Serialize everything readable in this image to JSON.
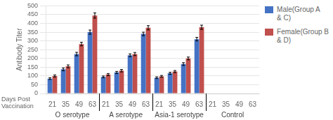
{
  "chart_data": {
    "type": "bar",
    "ylabel": "Antibody Titer",
    "xlabel": "Days Post\nVaccination",
    "categories": [
      "21",
      "35",
      "49",
      "63",
      "21",
      "35",
      "49",
      "63",
      "21",
      "35",
      "49",
      "63",
      "21",
      "35",
      "49",
      "63"
    ],
    "groups": [
      "O serotype",
      "A serotype",
      "Asia-1 serotype",
      "Control"
    ],
    "series": [
      {
        "name": "Male(Group A\n& C)",
        "color": "#4472c4",
        "values": [
          85,
          138,
          225,
          350,
          95,
          120,
          218,
          340,
          90,
          115,
          168,
          310,
          0,
          0,
          0,
          0
        ],
        "errors": [
          5,
          8,
          10,
          12,
          5,
          6,
          8,
          10,
          5,
          6,
          8,
          10,
          0,
          0,
          0,
          0
        ]
      },
      {
        "name": "Female(Group B\n& D)",
        "color": "#c0504d",
        "values": [
          100,
          155,
          282,
          445,
          108,
          130,
          225,
          375,
          98,
          125,
          200,
          378,
          0,
          0,
          0,
          0
        ],
        "errors": [
          6,
          8,
          10,
          15,
          6,
          7,
          9,
          12,
          5,
          6,
          8,
          12,
          0,
          0,
          0,
          0
        ]
      }
    ],
    "ylim": [
      0,
      500
    ],
    "yticks": [
      0,
      50,
      100,
      150,
      200,
      250,
      300,
      350,
      400,
      450,
      500
    ],
    "grid": true,
    "legend": "right"
  }
}
